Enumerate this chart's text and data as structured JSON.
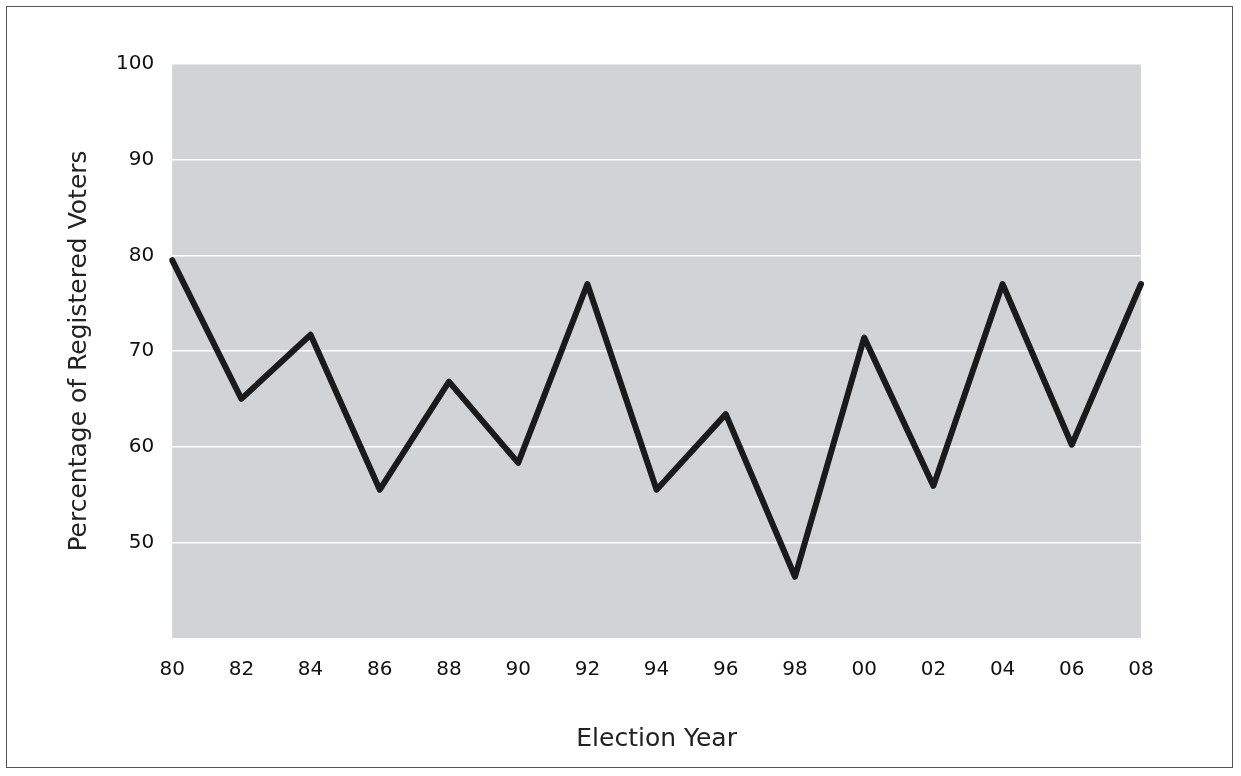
{
  "chart_data": {
    "type": "line",
    "xlabel": "Election Year",
    "ylabel": "Percentage of Registered Voters",
    "categories": [
      "80",
      "82",
      "84",
      "86",
      "88",
      "90",
      "92",
      "94",
      "96",
      "98",
      "00",
      "02",
      "04",
      "06",
      "08"
    ],
    "series": [
      {
        "color": "#1a1a1a",
        "values": [
          79.5,
          65,
          71.7,
          55.5,
          66.8,
          58.3,
          77,
          55.5,
          63.4,
          46.4,
          71.4,
          55.9,
          77,
          60.2,
          77
        ]
      }
    ],
    "ylim": [
      40,
      100
    ],
    "yticks": [
      50,
      60,
      70,
      80,
      90,
      100
    ],
    "grid": "y",
    "legend": false,
    "marker": "none",
    "line_style": "solid"
  }
}
